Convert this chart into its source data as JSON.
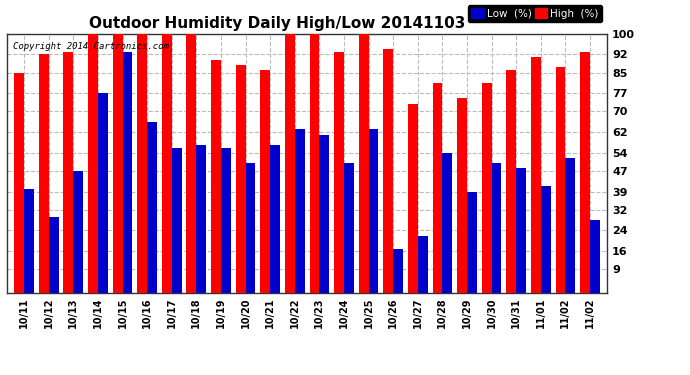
{
  "title": "Outdoor Humidity Daily High/Low 20141103",
  "copyright": "Copyright 2014 Cartronics.com",
  "categories": [
    "10/11",
    "10/12",
    "10/13",
    "10/14",
    "10/15",
    "10/16",
    "10/17",
    "10/18",
    "10/19",
    "10/20",
    "10/21",
    "10/22",
    "10/23",
    "10/24",
    "10/25",
    "10/26",
    "10/27",
    "10/28",
    "10/29",
    "10/30",
    "10/31",
    "11/01",
    "11/02",
    "11/02"
  ],
  "high_values": [
    85,
    92,
    93,
    100,
    100,
    100,
    100,
    100,
    90,
    88,
    86,
    100,
    100,
    93,
    100,
    94,
    73,
    81,
    75,
    81,
    86,
    91,
    87,
    93
  ],
  "low_values": [
    40,
    29,
    47,
    77,
    93,
    66,
    56,
    57,
    56,
    50,
    57,
    63,
    61,
    50,
    63,
    17,
    22,
    54,
    39,
    50,
    48,
    41,
    52,
    28
  ],
  "high_color": "#ff0000",
  "low_color": "#0000cc",
  "bg_color": "#ffffff",
  "plot_bg_color": "#ffffff",
  "grid_color": "#bbbbbb",
  "yticks": [
    9,
    16,
    24,
    32,
    39,
    47,
    54,
    62,
    70,
    77,
    85,
    92,
    100
  ],
  "ymin": 9,
  "ymax": 100,
  "title_fontsize": 11,
  "legend_labels": [
    "Low  (%)",
    "High  (%)"
  ],
  "bar_width": 0.4
}
